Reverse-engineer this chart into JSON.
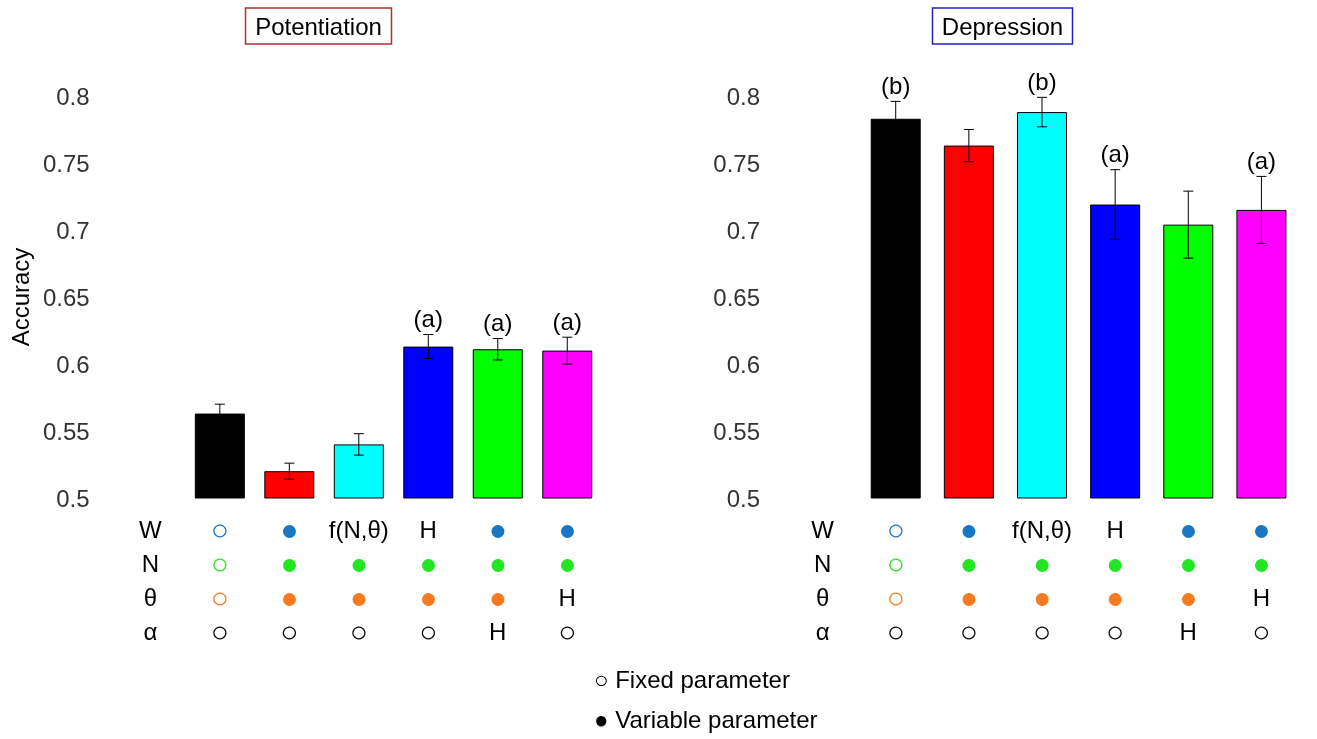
{
  "chart_data": [
    {
      "type": "bar",
      "title": "Potentiation",
      "ylabel": "Accuracy",
      "categories": [
        "W\nN\nθ\nα",
        "○\n○\n○\n○",
        "●\n●\n●\n○",
        "f(N,θ)\n●\n●\n○",
        "H\n●\n●\n○",
        "●\n●\n●\nH",
        "●\n●\nH\n○"
      ],
      "values": [
        null,
        0.563,
        0.52,
        0.54,
        0.613,
        0.611,
        0.61
      ],
      "errors": [
        null,
        0.007,
        0.006,
        0.008,
        0.009,
        0.008,
        0.01
      ],
      "value_labels": [
        null,
        null,
        null,
        null,
        "(a)",
        "(a)",
        "(a)"
      ],
      "colors": [
        null,
        "#000000",
        "#ff0000",
        "#00ffff",
        "#0000ff",
        "#00ff00",
        "#ff00ff"
      ],
      "ylim": [
        0.5,
        0.8
      ],
      "yticks": [
        0.5,
        0.55,
        0.6,
        0.65,
        0.7,
        0.75,
        0.8
      ],
      "grid": false
    },
    {
      "type": "bar",
      "title": "Depression",
      "categories": [
        "W\nN\nθ\nα",
        "○\n○\n○\n○",
        "●\n●\n●\n○",
        "f(N,θ)\n●\n●\n○",
        "H\n●\n●\n○",
        "●\n●\n●\nH",
        "●\n●\nH\n○"
      ],
      "values": [
        null,
        0.783,
        0.763,
        0.788,
        0.719,
        0.704,
        0.715
      ],
      "errors": [
        null,
        0.013,
        0.012,
        0.011,
        0.026,
        0.025,
        0.025
      ],
      "value_labels": [
        null,
        "(b)",
        null,
        "(b)",
        "(a)",
        null,
        "(a)"
      ],
      "colors": [
        null,
        "#000000",
        "#ff0000",
        "#00ffff",
        "#0000ff",
        "#00ff00",
        "#ff00ff"
      ],
      "ylim": [
        0.5,
        0.8
      ],
      "yticks": [
        0.5,
        0.55,
        0.6,
        0.65,
        0.7,
        0.75,
        0.8
      ],
      "grid": false,
      "annotations": [
        "○ Fixed parameter",
        "● Variable parameter"
      ]
    }
  ]
}
